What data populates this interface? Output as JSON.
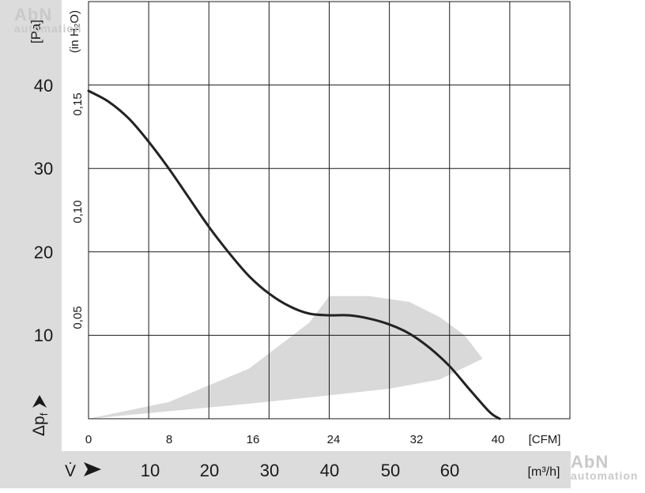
{
  "chart_data": {
    "type": "line",
    "y_unit": "[Pa]",
    "y_unit_alt": "(in H₂O)",
    "y_ticks": [
      "40",
      "30",
      "20",
      "10"
    ],
    "y_ticks_alt": [
      "0,15",
      "0,10",
      "0,05"
    ],
    "y_axis_symbol": "Δp",
    "y_axis_subscript": "f",
    "x_ticks": [
      "0",
      "8",
      "16",
      "24",
      "32",
      "40"
    ],
    "x_unit": "[CFM]",
    "x_ticks_alt": [
      "10",
      "20",
      "30",
      "40",
      "50",
      "60"
    ],
    "x_unit_alt": "[m³/h]",
    "x_axis_symbol": "V̇",
    "xlim": [
      0,
      48
    ],
    "ylim": [
      0,
      50
    ],
    "grid": true,
    "series": [
      {
        "color": "#222222",
        "x": [
          0,
          2,
          4,
          6,
          8,
          10,
          12,
          14,
          16,
          18,
          20,
          22,
          24,
          26,
          28,
          30,
          32,
          34,
          36,
          38,
          40,
          41
        ],
        "y": [
          39.3,
          38,
          36,
          33.2,
          30,
          26.5,
          23,
          19.9,
          17.1,
          15,
          13.5,
          12.6,
          12.4,
          12.4,
          12,
          11.3,
          10.2,
          8.5,
          6.3,
          3.5,
          0.8,
          0
        ]
      }
    ],
    "operating_region": {
      "color": "#d9d9d9",
      "upper": {
        "x": [
          0,
          8,
          16,
          22,
          24,
          28,
          32,
          35,
          37.5,
          39.3
        ],
        "y": [
          0,
          2,
          6,
          11.5,
          14.7,
          14.7,
          14,
          12.2,
          10,
          7.2
        ]
      },
      "lower": {
        "x": [
          0,
          8,
          16,
          24,
          30,
          35,
          39.3
        ],
        "y": [
          0,
          0.9,
          1.8,
          2.8,
          3.6,
          4.7,
          7.2
        ]
      }
    }
  },
  "watermarks": [
    "AbN",
    "automation"
  ]
}
